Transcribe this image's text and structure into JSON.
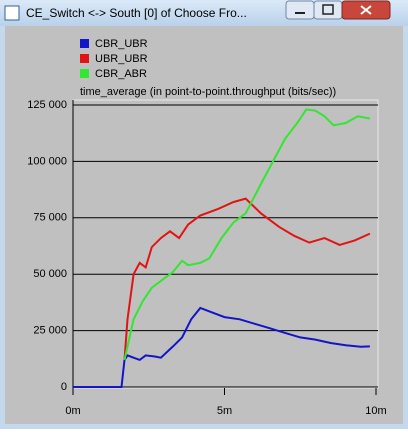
{
  "window": {
    "title": "CE_Switch <-> South [0] of Choose Fro..."
  },
  "chart_data": {
    "type": "line",
    "subtitle": "time_average (in point-to-point.throughput (bits/sec))",
    "xlim": [
      0,
      10
    ],
    "xticks": [
      {
        "value": 0,
        "label": "0m"
      },
      {
        "value": 5,
        "label": "5m"
      },
      {
        "value": 10,
        "label": "10m"
      }
    ],
    "ylim": [
      0,
      125000
    ],
    "yticks": [
      {
        "value": 0,
        "label": "0"
      },
      {
        "value": 25000,
        "label": "25 000"
      },
      {
        "value": 50000,
        "label": "50 000"
      },
      {
        "value": 75000,
        "label": "75 000"
      },
      {
        "value": 100000,
        "label": "100 000"
      },
      {
        "value": 125000,
        "label": "125 000"
      }
    ],
    "grid": true,
    "series": [
      {
        "name": "CBR_UBR",
        "color": "#1414c8",
        "x": [
          0,
          1.6,
          1.7,
          1.8,
          2.0,
          2.2,
          2.4,
          2.7,
          2.9,
          3.3,
          3.6,
          3.9,
          4.2,
          4.6,
          5.0,
          5.5,
          6.0,
          6.5,
          7.0,
          7.5,
          8.0,
          8.5,
          9.0,
          9.5,
          9.8
        ],
        "values": [
          0,
          0,
          12000,
          14000,
          13000,
          12000,
          14000,
          13500,
          13000,
          18000,
          22000,
          30000,
          35000,
          33000,
          31000,
          30000,
          28000,
          26000,
          24000,
          22000,
          21000,
          19500,
          18500,
          17800,
          18000
        ]
      },
      {
        "name": "UBR_UBR",
        "color": "#e01414",
        "x": [
          1.7,
          1.8,
          2.0,
          2.2,
          2.4,
          2.6,
          2.9,
          3.2,
          3.5,
          3.8,
          4.2,
          4.8,
          5.3,
          5.7,
          6.2,
          6.8,
          7.3,
          7.8,
          8.3,
          8.8,
          9.3,
          9.8
        ],
        "values": [
          12000,
          30000,
          50000,
          55000,
          53000,
          62000,
          66000,
          69000,
          66000,
          72000,
          76000,
          79000,
          82000,
          83500,
          77000,
          71000,
          67000,
          64000,
          66000,
          63000,
          65000,
          68000
        ]
      },
      {
        "name": "CBR_ABR",
        "color": "#32e632",
        "x": [
          1.7,
          2.0,
          2.3,
          2.6,
          3.0,
          3.3,
          3.6,
          3.8,
          4.2,
          4.5,
          4.9,
          5.3,
          5.7,
          6.2,
          6.6,
          7.0,
          7.4,
          7.7,
          8.0,
          8.3,
          8.6,
          9.0,
          9.4,
          9.8
        ],
        "values": [
          12000,
          30000,
          38000,
          44000,
          48000,
          51000,
          56000,
          54000,
          55000,
          57000,
          66000,
          73000,
          77000,
          90000,
          100000,
          110000,
          117000,
          123000,
          122500,
          120000,
          116000,
          117000,
          120000,
          119000
        ]
      }
    ]
  }
}
